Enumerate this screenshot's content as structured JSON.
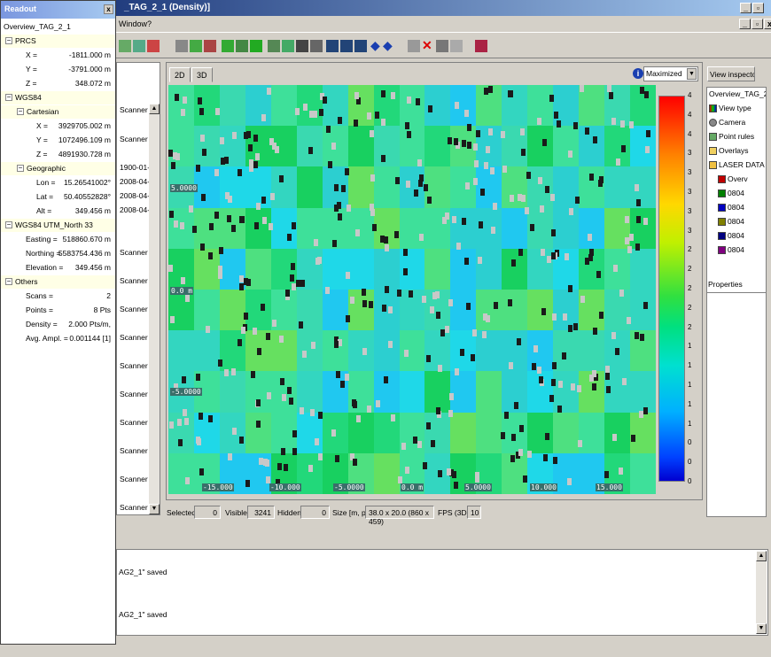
{
  "window": {
    "title": "_TAG_2_1 (Density)]"
  },
  "menu": {
    "window": "Window",
    "help": "?"
  },
  "readout": {
    "title": "Readout",
    "root": "Overview_TAG_2_1",
    "prcs": {
      "label": "PRCS",
      "x_label": "X =",
      "x": "-1811.000 m",
      "y_label": "Y =",
      "y": "-3791.000 m",
      "z_label": "Z =",
      "z": "348.072 m"
    },
    "wgs84": {
      "label": "WGS84",
      "cartesian": {
        "label": "Cartesian",
        "x_label": "X =",
        "x": "3929705.002 m",
        "y_label": "Y =",
        "y": "1072496.109 m",
        "z_label": "Z =",
        "z": "4891930.728 m"
      },
      "geographic": {
        "label": "Geographic",
        "lon_label": "Lon =",
        "lon": "15.26541002°",
        "lat_label": "Lat =",
        "lat": "50.40552828°",
        "alt_label": "Alt =",
        "alt": "349.456 m"
      }
    },
    "utm": {
      "label": "WGS84 UTM_North 33",
      "easting_label": "Easting =",
      "easting": "518860.670 m",
      "northing_label": "Northing =",
      "northing": "5583754.436 m",
      "elevation_label": "Elevation =",
      "elevation": "349.456 m"
    },
    "others": {
      "label": "Others",
      "scans_label": "Scans =",
      "scans": "2",
      "points_label": "Points =",
      "points": "8 Pts",
      "density_label": "Density =",
      "density": "2.000 Pts/m,",
      "ampl_label": "Avg. Ampl. =",
      "ampl": "0.001144 [1]"
    }
  },
  "leftlist": {
    "items": [
      "Scanner 1",
      "Scanner 1",
      "1900-01-03",
      "2008-04-24",
      "2008-04-24",
      "2008-04-24",
      "Scanner 1",
      "Scanner 1",
      "Scanner 1",
      "Scanner 1",
      "Scanner 1",
      "Scanner 1",
      "Scanner 1",
      "Scanner 1",
      "Scanner 1",
      "Scanner 1"
    ]
  },
  "view": {
    "tab_2d": "2D",
    "tab_3d": "3D",
    "mode": "Maximized",
    "x_ticks": [
      "-15.000",
      "-10.000",
      "-5.0000",
      "0.0 m",
      "5.0000",
      "10.000",
      "15.000"
    ],
    "y_ticks": [
      "5.0000",
      "0.0 m",
      "-5.0000"
    ],
    "colorbar_ticks": [
      "4",
      "4",
      "4",
      "3",
      "3",
      "3",
      "3",
      "3",
      "2",
      "2",
      "2",
      "2",
      "2",
      "1",
      "1",
      "1",
      "1",
      "1",
      "0",
      "0",
      "0"
    ]
  },
  "status": {
    "selected_label": "Selected:",
    "selected": "0",
    "visible_label": "Visible:",
    "visible": "3241",
    "hidden_label": "Hidden:",
    "hidden": "0",
    "size_label": "Size [m, px]:",
    "size": "38.0 x 20.0 (860 x 459)",
    "fps_label": "FPS (3D):",
    "fps": "10"
  },
  "inspector": {
    "title": "View inspector",
    "root": "Overview_TAG_2",
    "items": [
      "View type",
      "Camera",
      "Point rules",
      "Overlays",
      "LASER DATA",
      "Overv",
      "0804",
      "0804",
      "0804",
      "0804",
      "0804"
    ],
    "swatch_colors": [
      "#c00000",
      "#008000",
      "#0000c0",
      "#808000",
      "#000080",
      "#800080"
    ],
    "properties": "Properties"
  },
  "log": {
    "line1": "AG2_1\" saved",
    "line2": "AG2_1\" saved"
  }
}
